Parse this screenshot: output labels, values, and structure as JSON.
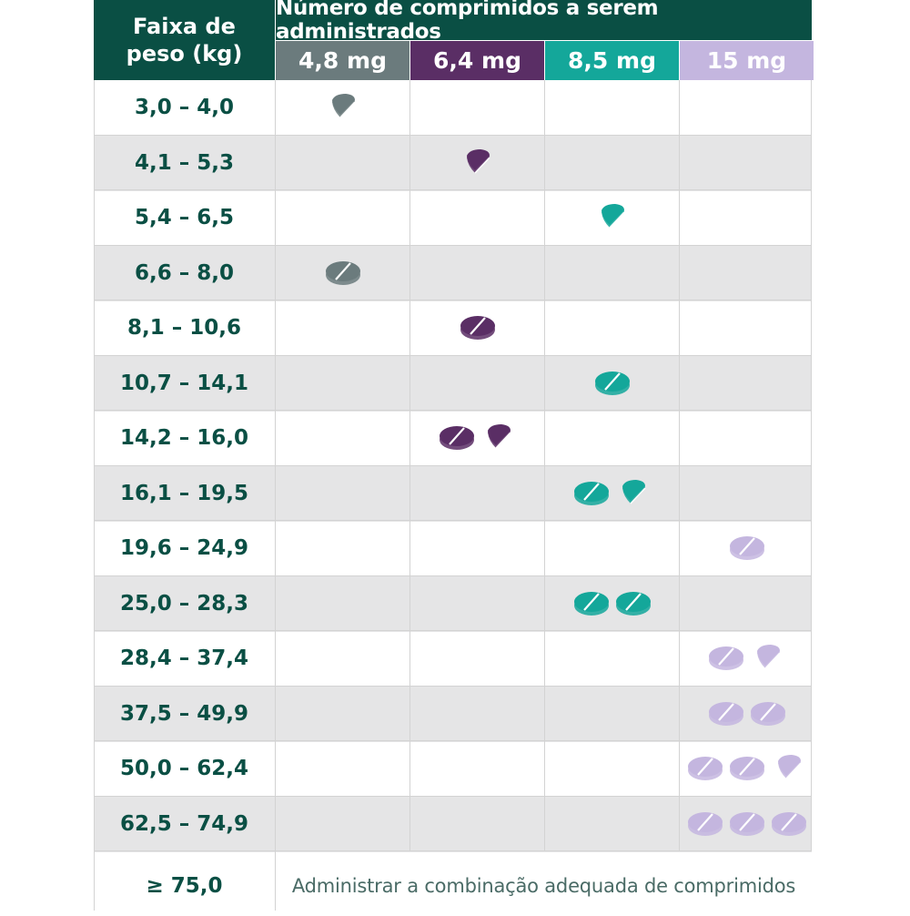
{
  "header": {
    "weight_label": "Faixa de\npeso (kg)",
    "title": "Número de comprimidos a serem administrados",
    "doses": [
      {
        "label": "4,8 mg",
        "color": "#6b7b7d"
      },
      {
        "label": "6,4 mg",
        "color": "#5a2e65"
      },
      {
        "label": "8,5 mg",
        "color": "#14a79a"
      },
      {
        "label": "15 mg",
        "color": "#c4b6df"
      }
    ]
  },
  "colors": {
    "header_bg": "#0a4f44",
    "row_alt_bg": "#e5e5e6",
    "weight_text": "#0a4f44",
    "note_text": "#4a6b66"
  },
  "rows": [
    {
      "weight": "3,0 – 4,0",
      "tablets": [
        {
          "dose": 0,
          "whole": 0,
          "half": 1
        }
      ]
    },
    {
      "weight": "4,1 – 5,3",
      "tablets": [
        {
          "dose": 1,
          "whole": 0,
          "half": 1
        }
      ]
    },
    {
      "weight": "5,4 – 6,5",
      "tablets": [
        {
          "dose": 2,
          "whole": 0,
          "half": 1
        }
      ]
    },
    {
      "weight": "6,6 – 8,0",
      "tablets": [
        {
          "dose": 0,
          "whole": 1,
          "half": 0
        }
      ]
    },
    {
      "weight": "8,1 – 10,6",
      "tablets": [
        {
          "dose": 1,
          "whole": 1,
          "half": 0
        }
      ]
    },
    {
      "weight": "10,7 – 14,1",
      "tablets": [
        {
          "dose": 2,
          "whole": 1,
          "half": 0
        }
      ]
    },
    {
      "weight": "14,2 – 16,0",
      "tablets": [
        {
          "dose": 1,
          "whole": 1,
          "half": 1
        }
      ]
    },
    {
      "weight": "16,1 – 19,5",
      "tablets": [
        {
          "dose": 2,
          "whole": 1,
          "half": 1
        }
      ]
    },
    {
      "weight": "19,6 – 24,9",
      "tablets": [
        {
          "dose": 3,
          "whole": 1,
          "half": 0
        }
      ]
    },
    {
      "weight": "25,0 – 28,3",
      "tablets": [
        {
          "dose": 2,
          "whole": 2,
          "half": 0
        }
      ]
    },
    {
      "weight": "28,4 – 37,4",
      "tablets": [
        {
          "dose": 3,
          "whole": 1,
          "half": 1
        }
      ]
    },
    {
      "weight": "37,5 – 49,9",
      "tablets": [
        {
          "dose": 3,
          "whole": 2,
          "half": 0
        }
      ]
    },
    {
      "weight": "50,0 – 62,4",
      "tablets": [
        {
          "dose": 3,
          "whole": 2,
          "half": 1
        }
      ]
    },
    {
      "weight": "62,5 – 74,9",
      "tablets": [
        {
          "dose": 3,
          "whole": 3,
          "half": 0
        }
      ]
    }
  ],
  "footer": {
    "weight": "≥ 75,0",
    "note": "Administrar a combinação adequada de comprimidos"
  }
}
